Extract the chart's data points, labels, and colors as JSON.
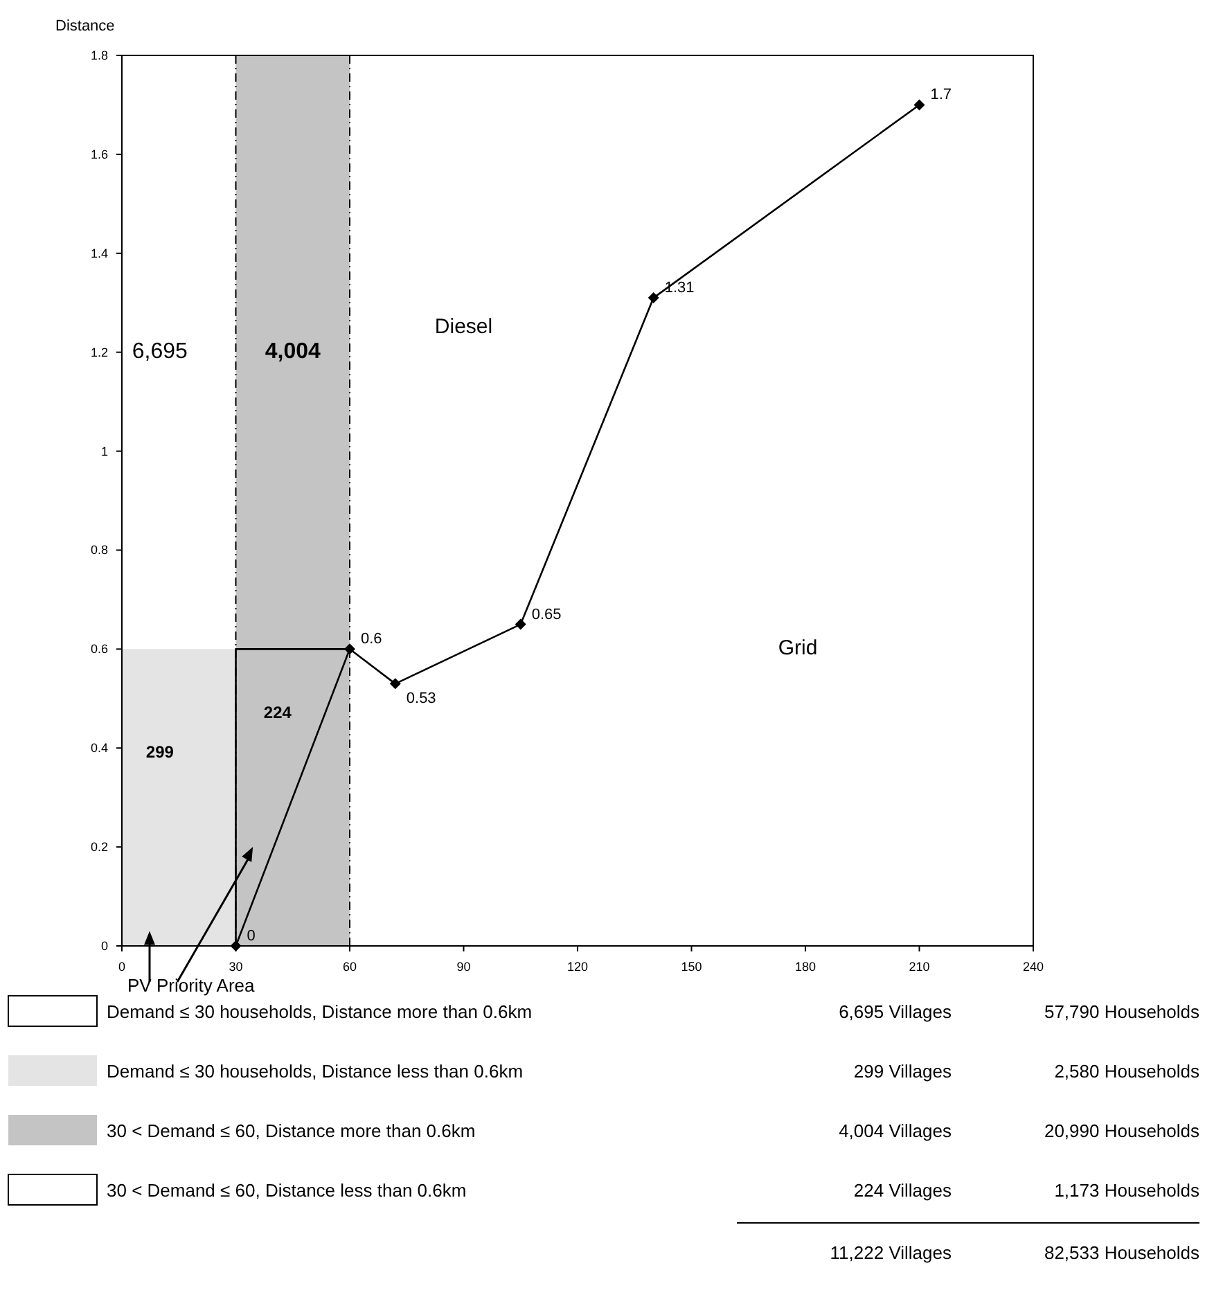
{
  "chart_data": {
    "type": "line",
    "ylabel": "Distance",
    "xlim": [
      0,
      240
    ],
    "xticks": [
      0,
      30,
      60,
      90,
      120,
      150,
      180,
      210,
      240
    ],
    "ylim": [
      0,
      1.8
    ],
    "yticks": [
      0,
      0.2,
      0.4,
      0.6,
      0.8,
      1,
      1.2,
      1.4,
      1.6,
      1.8
    ],
    "grid": false,
    "series": [
      {
        "type": "area",
        "color": "#e4e4e4",
        "x": [
          0,
          30
        ],
        "values": [
          0.6,
          0.6
        ]
      },
      {
        "type": "line",
        "color": "#000000",
        "x": [
          30,
          30,
          60
        ],
        "values": [
          0,
          0.6,
          0.6
        ]
      },
      {
        "type": "line",
        "color": "#000000",
        "marker": "diamond",
        "x": [
          30,
          60,
          72,
          105,
          140,
          210
        ],
        "values": [
          0,
          0.6,
          0.53,
          0.65,
          1.31,
          1.7
        ],
        "value_labels": [
          "0",
          "0.6",
          "0.53",
          "0.65",
          "1.31",
          "1.7"
        ]
      }
    ],
    "bands": [
      {
        "axis": "x",
        "from": 30,
        "to": 60,
        "color": "#c4c4c4"
      }
    ],
    "ref_lines": [
      {
        "axis": "x",
        "value": 30,
        "line_style": "dashed"
      },
      {
        "axis": "x",
        "value": 60,
        "line_style": "dashed"
      }
    ],
    "annotations": [
      "6,695",
      "4,004",
      "Diesel",
      "Grid",
      "299",
      "224",
      "PV Priority Area",
      "Demand ≤ 30 households, Distance more than 0.6km",
      "6,695 Villages",
      "57,790 Households",
      "Demand ≤ 30 households, Distance less than 0.6km",
      "299 Villages",
      "2,580 Households",
      "30 < Demand ≤ 60, Distance more than 0.6km",
      "4,004 Villages",
      "20,990 Households",
      "30 < Demand ≤ 60, Distance less than 0.6km",
      "224 Villages",
      "1,173 Households",
      "11,222 Villages",
      "82,533 Households"
    ]
  }
}
